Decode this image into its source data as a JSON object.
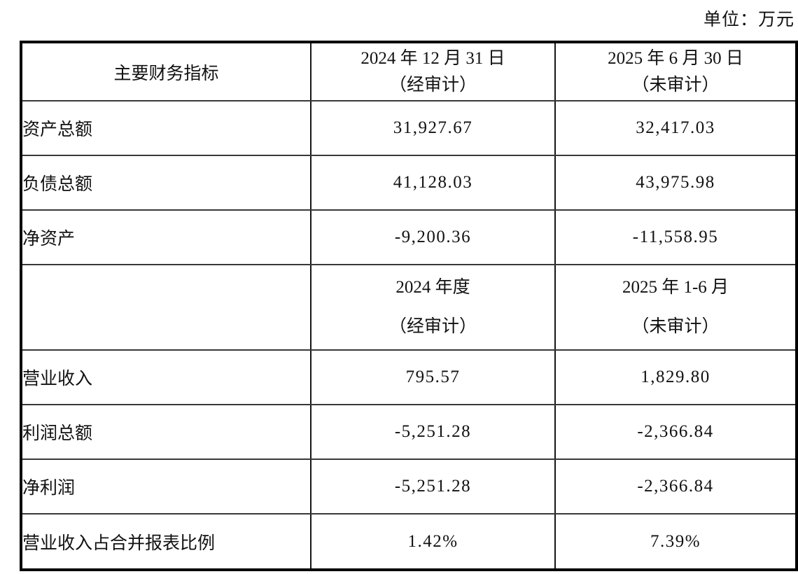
{
  "unit_label": "单位：万元",
  "table": {
    "header": {
      "indicator": "主要财务指标",
      "col2_line1": "2024 年 12 月 31 日",
      "col2_line2": "（经审计）",
      "col3_line1": "2025 年 6 月 30 日",
      "col3_line2": "（未审计）"
    },
    "rows_balance": [
      {
        "label": "资产总额",
        "v2024": "31,927.67",
        "v2025": "32,417.03"
      },
      {
        "label": "负债总额",
        "v2024": "41,128.03",
        "v2025": "43,975.98"
      },
      {
        "label": "净资产",
        "v2024": "-9,200.36",
        "v2025": "-11,558.95"
      }
    ],
    "mid_header": {
      "col1": "",
      "col2_line1": "2024 年度",
      "col2_line2": "（经审计）",
      "col3_line1": "2025 年 1-6 月",
      "col3_line2": "（未审计）"
    },
    "rows_income": [
      {
        "label": "营业收入",
        "v2024": "795.57",
        "v2025": "1,829.80"
      },
      {
        "label": "利润总额",
        "v2024": "-5,251.28",
        "v2025": "-2,366.84"
      },
      {
        "label": "净利润",
        "v2024": "-5,251.28",
        "v2025": "-2,366.84"
      },
      {
        "label": "营业收入占合并报表比例",
        "v2024": "1.42%",
        "v2025": "7.39%"
      }
    ]
  },
  "colors": {
    "text": "#111111",
    "border_outer": "#000000",
    "border_inner": "#383838",
    "background": "#ffffff"
  }
}
